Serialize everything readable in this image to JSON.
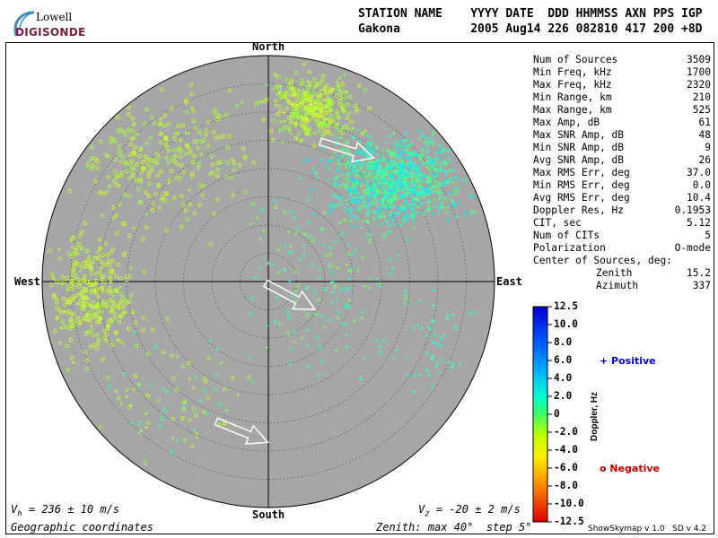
{
  "logo": {
    "line1": "Lowell",
    "line2": "DIGISONDE"
  },
  "header": {
    "line1": "STATION NAME    YYYY DATE  DDD HHMMSS AXN PPS IGP",
    "line2": "Gakona          2005 Aug14 226 082810 417 200 +8D"
  },
  "stats": [
    {
      "label": "Num of Sources",
      "value": "3509"
    },
    {
      "label": "Min Freq, kHz",
      "value": "1700"
    },
    {
      "label": "Max Freq, kHz",
      "value": "2320"
    },
    {
      "label": "Min Range, km",
      "value": "210"
    },
    {
      "label": "Max Range, km",
      "value": "525"
    },
    {
      "label": "Max Amp, dB",
      "value": "61"
    },
    {
      "label": "Max SNR Amp, dB",
      "value": "48"
    },
    {
      "label": "Min SNR Amp, dB",
      "value": "9"
    },
    {
      "label": "Avg SNR Amp, dB",
      "value": "26"
    },
    {
      "label": "Max RMS Err, deg",
      "value": "37.0"
    },
    {
      "label": "Min RMS Err, deg",
      "value": "0.0"
    },
    {
      "label": "Avg RMS Err, deg",
      "value": "10.4"
    },
    {
      "label": "Doppler Res, Hz",
      "value": "0.1953"
    },
    {
      "label": "CIT, sec",
      "value": "5.12"
    },
    {
      "label": "Num of CITs",
      "value": "5"
    },
    {
      "label": "Polarization",
      "value": "O-mode"
    }
  ],
  "center": {
    "title": "Center of Sources, deg:",
    "zenith_label": "Zenith",
    "zenith_value": "15.2",
    "azimuth_label": "Azimuth",
    "azimuth_value": "337"
  },
  "compass": {
    "north": "North",
    "south": "South",
    "east": "East",
    "west": "West"
  },
  "footer": {
    "vh": "V",
    "vh_sub": "h",
    "vh_value": " = 236 ± 10 m/s",
    "vz": "V",
    "vz_sub": "z",
    "vz_value": " = -20 ± 2 m/s",
    "coords": "Geographic coordinates",
    "zenith_info": "Zenith: max 40°  step 5°"
  },
  "colorbar": {
    "title": "Doppler, Hz",
    "ticks": [
      "12.5",
      "10.0",
      "8.0",
      "6.0",
      "4.0",
      "2.0",
      "0",
      "-2.0",
      "-4.0",
      "-6.0",
      "-8.0",
      "-10.0",
      "-12.5"
    ],
    "positive": "+ Positive",
    "negative": "o Negative",
    "positive_color": "#0000cc",
    "negative_color": "#cc0000"
  },
  "version": "ShowSkymap v 1.0   SD v 4.2",
  "colors": {
    "disc": "#a6a6a6",
    "arrow": "#ffffff",
    "logo_arc": "#3a8fc0"
  }
}
